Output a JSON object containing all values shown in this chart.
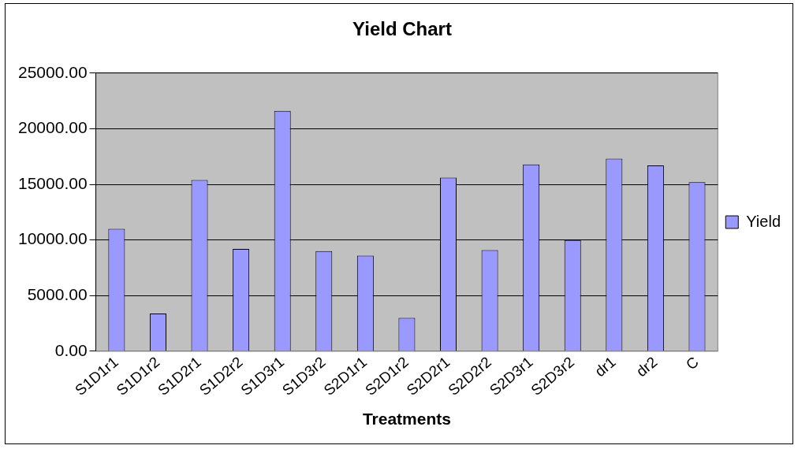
{
  "chart_data": {
    "type": "bar",
    "title": "Yield Chart",
    "xlabel": "Treatments",
    "categories": [
      "S1D1r1",
      "S1D1r2",
      "S1D2r1",
      "S1D2r2",
      "S1D3r1",
      "S1D3r2",
      "S2D1r1",
      "S2D1r2",
      "S2D2r1",
      "S2D2r2",
      "S2D3r1",
      "S2D3r2",
      "dr1",
      "dr2",
      "C"
    ],
    "series": [
      {
        "name": "Yield",
        "color": "#9999ff",
        "values": [
          11000,
          3400,
          15400,
          9200,
          21600,
          9000,
          8600,
          3000,
          15600,
          9100,
          16800,
          10000,
          17300,
          16700,
          15200
        ]
      }
    ],
    "ylim": [
      0,
      25000
    ],
    "yticks": [
      {
        "value": 0,
        "label": "0.00"
      },
      {
        "value": 5000,
        "label": "5000.00"
      },
      {
        "value": 10000,
        "label": "10000.00"
      },
      {
        "value": 15000,
        "label": "15000.00"
      },
      {
        "value": 20000,
        "label": "20000.00"
      },
      {
        "value": 25000,
        "label": "25000.00"
      }
    ],
    "grid": "y",
    "legend": "right"
  }
}
